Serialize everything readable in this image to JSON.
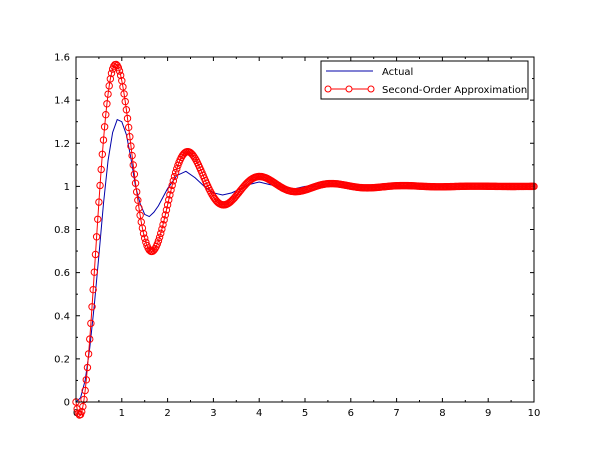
{
  "chart_data": {
    "type": "line",
    "title": "",
    "xlabel": "",
    "ylabel": "",
    "xlim": [
      0,
      10
    ],
    "ylim": [
      0,
      1.6
    ],
    "xticks": [
      "0",
      "1",
      "2",
      "3",
      "4",
      "5",
      "6",
      "7",
      "8",
      "9",
      "10"
    ],
    "yticks": [
      "0",
      "0.2",
      "0.4",
      "0.6",
      "0.8",
      "1",
      "1.2",
      "1.4",
      "1.6"
    ],
    "grid": false,
    "legend_position": "top-right",
    "series": [
      {
        "name": "Actual",
        "color": "#0000aa",
        "marker": "none",
        "x": [
          0,
          0.1,
          0.2,
          0.3,
          0.4,
          0.5,
          0.6,
          0.7,
          0.8,
          0.9,
          1.0,
          1.1,
          1.2,
          1.3,
          1.4,
          1.5,
          1.6,
          1.7,
          1.8,
          1.9,
          2.0,
          2.2,
          2.4,
          2.6,
          2.8,
          3.0,
          3.2,
          3.4,
          3.6,
          3.8,
          4.0,
          4.2,
          4.4,
          4.6,
          4.8,
          5.0,
          5.5,
          6.0,
          7.0,
          8.0,
          9.0,
          10.0
        ],
        "y": [
          0,
          0.02,
          0.1,
          0.25,
          0.45,
          0.68,
          0.92,
          1.12,
          1.25,
          1.31,
          1.3,
          1.24,
          1.13,
          1.0,
          0.92,
          0.87,
          0.86,
          0.88,
          0.91,
          0.95,
          0.99,
          1.05,
          1.07,
          1.04,
          1.0,
          0.97,
          0.96,
          0.97,
          0.99,
          1.01,
          1.02,
          1.01,
          1.0,
          0.99,
          0.99,
          1.0,
          1.0,
          1.0,
          1.0,
          1.0,
          1.0,
          1.0
        ]
      },
      {
        "name": "Second-Order Approximation",
        "color": "#ff0000",
        "marker": "circle",
        "formula": "1 - 1.1547*exp(-0.8t)*cos(4t - 0.5236)",
        "t_step": 0.025
      }
    ]
  }
}
